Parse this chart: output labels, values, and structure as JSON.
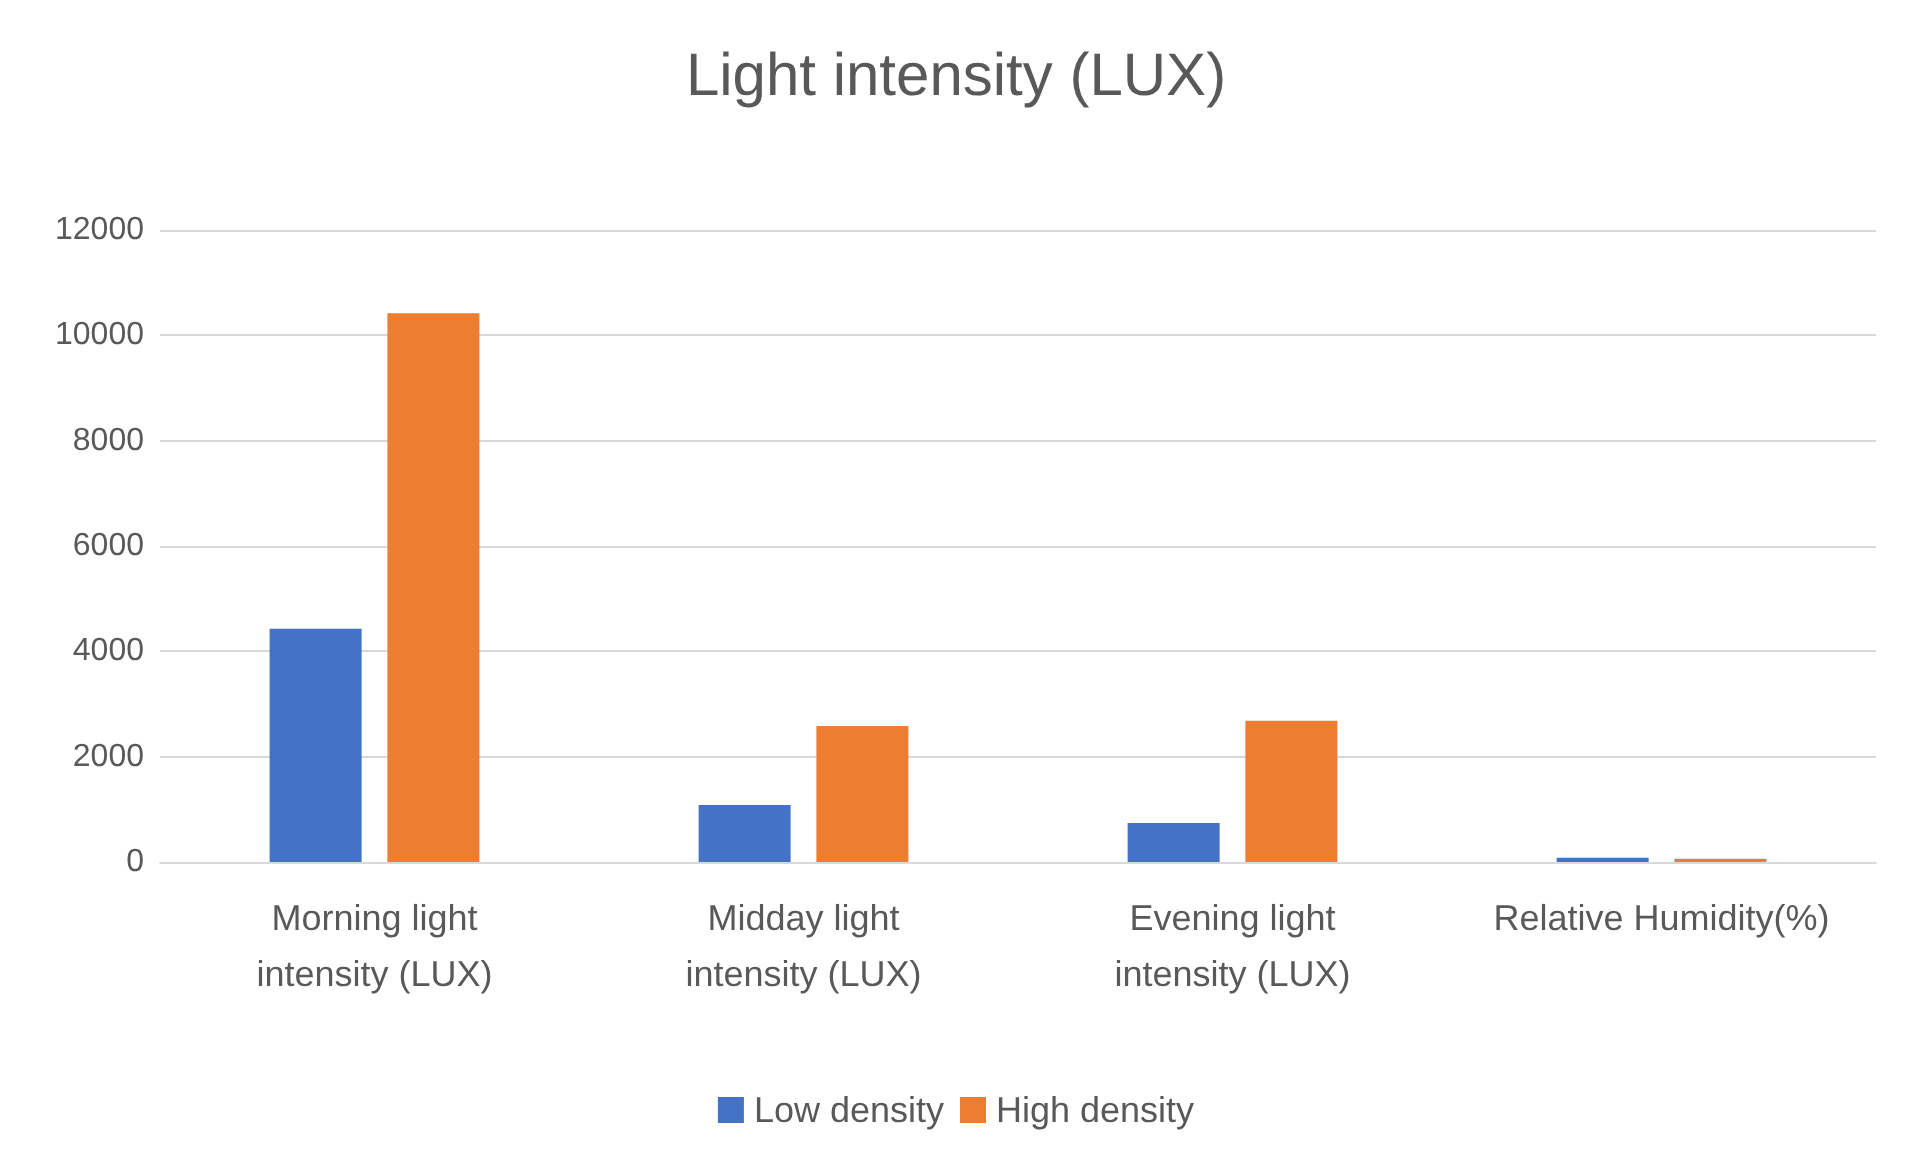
{
  "chart_data": {
    "type": "bar",
    "title": "Light intensity (LUX)",
    "categories": [
      "Morning light\nintensity (LUX)",
      "Midday light\nintensity (LUX)",
      "Evening light\nintensity (LUX)",
      "Relative Humidity(%)"
    ],
    "series": [
      {
        "name": "Low density",
        "color": "#4472c4",
        "values": [
          4430,
          1080,
          740,
          80
        ]
      },
      {
        "name": "High density",
        "color": "#ed7d31",
        "values": [
          10420,
          2580,
          2680,
          60
        ]
      }
    ],
    "ylim": [
      0,
      12000
    ],
    "yticks": [
      0,
      2000,
      4000,
      6000,
      8000,
      10000,
      12000
    ],
    "grid": "y",
    "legend": "bottom"
  }
}
